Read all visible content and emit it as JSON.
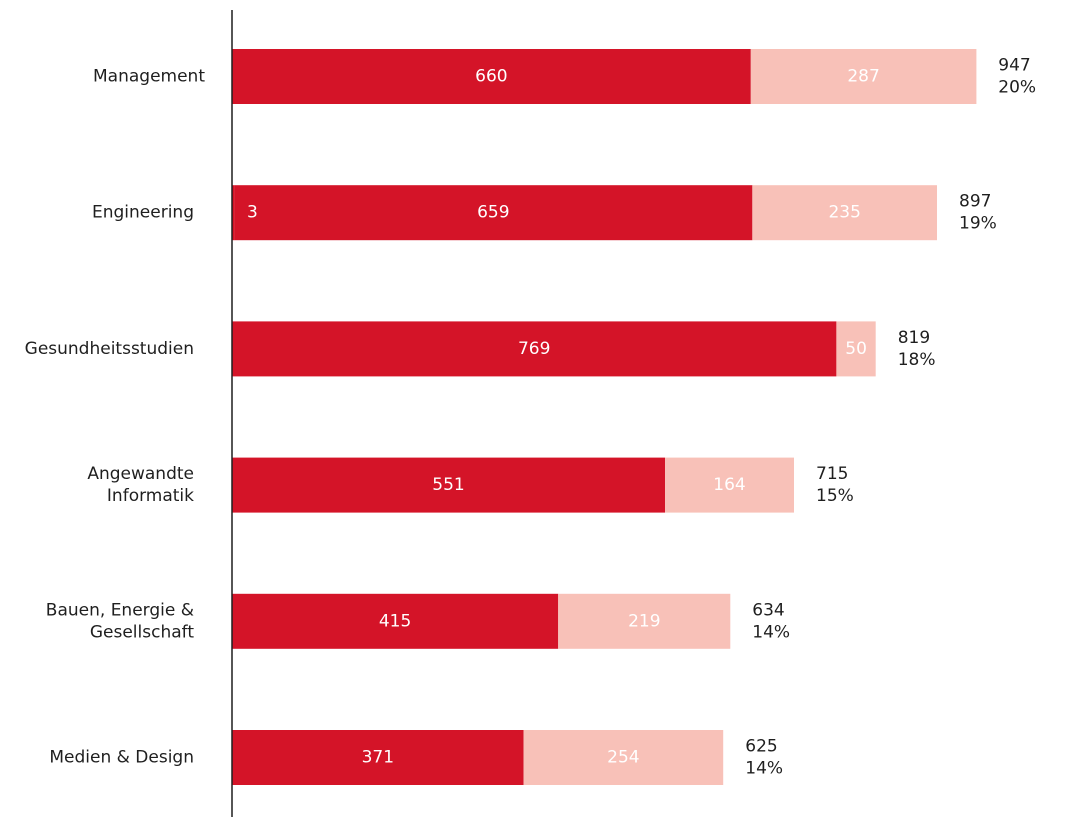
{
  "chart_data": {
    "type": "bar",
    "orientation": "horizontal",
    "stacked": true,
    "categories": [
      [
        "Management"
      ],
      [
        "Engineering"
      ],
      [
        "Gesundheitsstudien"
      ],
      [
        "Angewandte",
        "Informatik"
      ],
      [
        "Bauen, Energie &",
        "Gesellschaft"
      ],
      [
        "Medien & Design"
      ]
    ],
    "series": [
      {
        "values": [
          0,
          3,
          0,
          0,
          0,
          0
        ],
        "color": "#d41428",
        "label_color": "#ffffff"
      },
      {
        "values": [
          660,
          659,
          769,
          551,
          415,
          371
        ],
        "color": "#d41428",
        "label_color": "#ffffff"
      },
      {
        "values": [
          287,
          235,
          50,
          164,
          219,
          254
        ],
        "color": "#f8c1b8",
        "label_color": "#ffffff"
      }
    ],
    "totals": [
      "947",
      "897",
      "819",
      "715",
      "634",
      "625"
    ],
    "shares": [
      "20%",
      "19%",
      "18%",
      "15%",
      "14%",
      "14%"
    ],
    "xlim": [
      0,
      947
    ],
    "grid": false,
    "legend": false,
    "axis_color": "#1f1f1f"
  }
}
